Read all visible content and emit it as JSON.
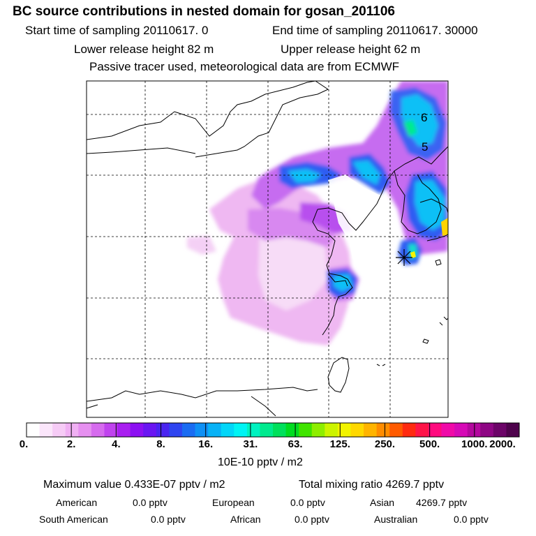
{
  "header": {
    "title": "BC  source contributions in nested domain for gosan_201106",
    "start": "Start time of sampling 20110617.     0",
    "end": "End time of sampling 20110617. 30000",
    "lower_height": "Lower release height   82 m",
    "upper_height": "Upper release height   62 m",
    "note": "Passive tracer used, meteorological data are from ECMWF"
  },
  "map": {
    "labels": [
      "6",
      "5"
    ],
    "receptor": "gosan"
  },
  "colorbar": {
    "ticks": [
      "0.",
      "2.",
      "4.",
      "8.",
      "16.",
      "31.",
      "63.",
      "125.",
      "250.",
      "500.",
      "1000.",
      "2000."
    ],
    "unit": "10E-10 pptv / m2",
    "colors": [
      "#ffffff",
      "#fbe6fb",
      "#f6cbf6",
      "#f0b0f3",
      "#e690f0",
      "#d66bee",
      "#c043ee",
      "#a91ff0",
      "#8c10f2",
      "#6a16f2",
      "#4a24f0",
      "#2f45f0",
      "#1a6cf2",
      "#0e90f5",
      "#08b2f6",
      "#03d6f8",
      "#00f4f4",
      "#00f2c0",
      "#00ea8e",
      "#00e05c",
      "#00dc20",
      "#40e400",
      "#8eee00",
      "#ccf400",
      "#f2f400",
      "#ffd800",
      "#ffb400",
      "#ff8c00",
      "#ff5a00",
      "#ff2a10",
      "#ff1448",
      "#ff0a7e",
      "#f00aa8",
      "#d60ab6",
      "#b4089e",
      "#8e0684",
      "#6c0468",
      "#4e024c"
    ]
  },
  "footer": {
    "max_value": "Maximum value  0.433E-07 pptv / m2",
    "total": "Total mixing ratio     4269.7 pptv",
    "regions": [
      {
        "name": "American",
        "value": "0.0 pptv"
      },
      {
        "name": "European",
        "value": "0.0 pptv"
      },
      {
        "name": "Asian",
        "value": "4269.7 pptv"
      },
      {
        "name": "South American",
        "value": "0.0 pptv"
      },
      {
        "name": "African",
        "value": "0.0 pptv"
      },
      {
        "name": "Australian",
        "value": "0.0 pptv"
      }
    ]
  }
}
